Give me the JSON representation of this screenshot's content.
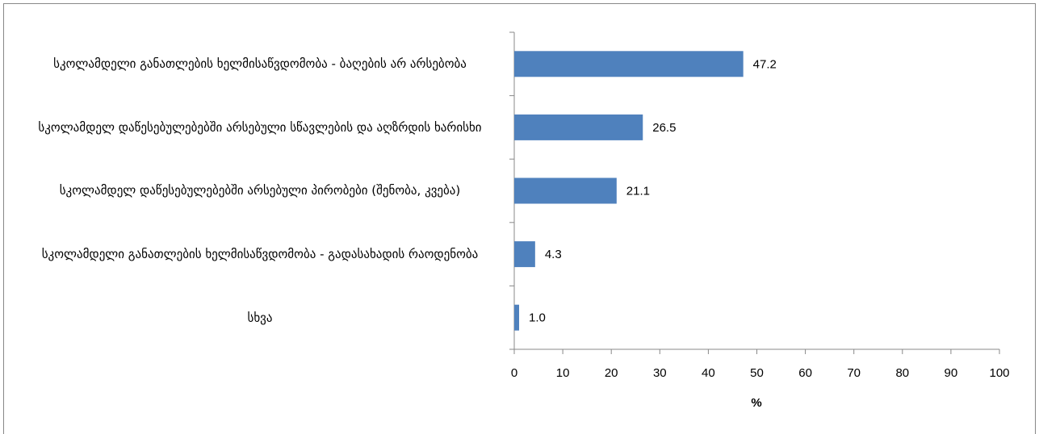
{
  "chart_data": {
    "type": "bar",
    "orientation": "horizontal",
    "categories": [
      "სკოლამდელი განათლების ხელმისაწვდომობა - ბაღების არ არსებობა",
      "სკოლამდელ დაწესებულებებში არსებული სწავლების და აღზრდის ხარისხი",
      "სკოლამდელ დაწესებულებებში არსებული პირობები (შენობა, კვება)",
      "სკოლამდელი განათლების ხელმისაწვდომობა - გადასახადის რაოდენობა",
      "სხვა"
    ],
    "values": [
      47.2,
      26.5,
      21.1,
      4.3,
      1
    ],
    "value_labels": [
      "47.2",
      "26.5",
      "21.1",
      "4.3",
      "1.0"
    ],
    "color": "#4f81bd",
    "x_label": "%",
    "xlim": [
      0,
      100
    ],
    "xticks": [
      0,
      10,
      20,
      30,
      40,
      50,
      60,
      70,
      80,
      90,
      100
    ],
    "grid": false
  }
}
